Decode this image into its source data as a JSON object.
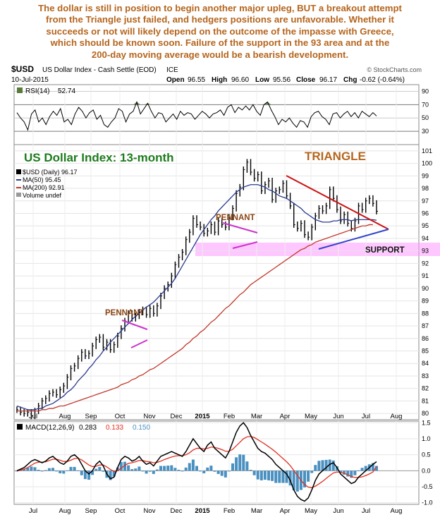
{
  "commentary": [
    "The dollar is still in position to begin another major upleg, BUT a breakout attempt",
    "from the Triangle just failed, and hedgers positions are unfavorable. Whether it",
    "succeeds or not will likely depend on the outcome of the impasse with Greece,",
    "which should be known soon. Failure of the support in the 93 area and at the",
    "200-day moving average would be a bearish development."
  ],
  "header": {
    "symbol": "$USD",
    "name": "US Dollar Index - Cash Settle (EOD)",
    "exchange": "ICE",
    "watermark": "© StockCharts.com",
    "date": "10-Jul-2015",
    "open_label": "Open",
    "open": "96.55",
    "high_label": "High",
    "high": "96.60",
    "low_label": "Low",
    "low": "95.56",
    "close_label": "Close",
    "close": "96.17",
    "chg_label": "Chg",
    "chg": "-0.62 (-0.64%)"
  },
  "rsi_panel": {
    "label": "RSI(14)",
    "value": "52.74"
  },
  "price_legend": {
    "main": "$USD (Daily) 96.17",
    "ma50": "MA(50) 95.45",
    "ma200": "MA(200) 92.91",
    "volume": "Volume undef"
  },
  "annotations": {
    "title": "US Dollar Index: 13-month",
    "triangle": "TRIANGLE",
    "pennant_1": "PENNANT",
    "pennant_2": "PENNANT",
    "support": "SUPPORT"
  },
  "macd_panel": {
    "label": "MACD(12,26,9)",
    "v1": "0.283",
    "v2": "0.133",
    "v3": "0.150"
  },
  "colors": {
    "commentary": "#b5651d",
    "title": "#1e7b1e",
    "annotation": "#8b4513",
    "price": "#000000",
    "ma50": "#2b3a8f",
    "ma200": "#c0392b",
    "triangle_upper": "#cc1111",
    "triangle_lower": "#3344cc",
    "pennant": "#cc33cc",
    "support_band": "#ff99ff",
    "macd_line": "#000000",
    "macd_signal": "#e03020",
    "histogram": "#4a90c0",
    "rsi_fill": "#5a7a3a"
  },
  "chart_data": [
    {
      "type": "line",
      "title": "",
      "x_ticks": [
        "Jul",
        "Aug",
        "Sep",
        "Oct",
        "Nov",
        "Dec",
        "2015",
        "Feb",
        "Mar",
        "Apr",
        "May",
        "Jun",
        "Jul",
        "Aug"
      ],
      "ylim": [
        10,
        100
      ],
      "y_ticks": [
        90,
        70,
        50,
        30
      ],
      "series": [
        {
          "name": "RSI(14)",
          "values": [
            58,
            50,
            44,
            32,
            56,
            62,
            44,
            50,
            40,
            52,
            60,
            54,
            64,
            44,
            48,
            40,
            56,
            66,
            60,
            50,
            58,
            62,
            48,
            54,
            40,
            36,
            44,
            50,
            64,
            60,
            44,
            56,
            60,
            74,
            56,
            64,
            72,
            60,
            50,
            58,
            56,
            44,
            50,
            56,
            48,
            60,
            54,
            58,
            56,
            48,
            54,
            60,
            56,
            50,
            56,
            58,
            62,
            54,
            66,
            70,
            58,
            66,
            62,
            68,
            62,
            70,
            60,
            54,
            70,
            74,
            62,
            52,
            40,
            48,
            44,
            50,
            42,
            36,
            46,
            44,
            36,
            52,
            58,
            60,
            52,
            48,
            40,
            56,
            58,
            50,
            56,
            60,
            52,
            58,
            50,
            60,
            56,
            52,
            58,
            53
          ]
        }
      ]
    },
    {
      "type": "line",
      "title": "US Dollar Index: 13-month",
      "x_ticks": [
        "Jul",
        "Aug",
        "Sep",
        "Oct",
        "Nov",
        "Dec",
        "2015",
        "Feb",
        "Mar",
        "Apr",
        "May",
        "Jun",
        "Jul",
        "Aug"
      ],
      "ylim": [
        79.5,
        101.5
      ],
      "y_ticks": [
        80,
        81,
        82,
        83,
        84,
        85,
        86,
        87,
        88,
        89,
        90,
        91,
        92,
        93,
        94,
        95,
        96,
        97,
        98,
        99,
        100,
        101
      ],
      "series": [
        {
          "name": "$USD (Daily)",
          "values": [
            80.3,
            80.1,
            80.0,
            80.1,
            79.8,
            80.2,
            80.6,
            81.0,
            81.2,
            81.6,
            81.7,
            81.5,
            81.9,
            82.2,
            82.9,
            83.6,
            83.8,
            84.4,
            84.9,
            84.6,
            84.8,
            85.4,
            85.9,
            86.1,
            85.3,
            85.7,
            85.1,
            85.5,
            86.2,
            86.8,
            87.4,
            88.0,
            87.6,
            87.8,
            88.1,
            88.3,
            87.9,
            88.4,
            88.0,
            88.6,
            89.4,
            90.0,
            90.3,
            91.0,
            91.9,
            92.5,
            92.9,
            93.9,
            94.5,
            95.6,
            95.1,
            94.9,
            94.4,
            94.6,
            95.1,
            94.5,
            95.4,
            95.1,
            94.9,
            95.7,
            96.4,
            97.6,
            98.1,
            99.5,
            100.1,
            99.3,
            98.8,
            99.1,
            97.8,
            98.3,
            98.6,
            97.1,
            97.8,
            97.9,
            98.4,
            97.4,
            96.6,
            95.1,
            94.8,
            95.2,
            94.3,
            94.1,
            94.9,
            95.8,
            96.4,
            96.2,
            96.6,
            97.9,
            97.2,
            96.3,
            95.4,
            95.9,
            95.2,
            94.8,
            95.4,
            96.6,
            96.3,
            97.0,
            97.2,
            96.8,
            96.17
          ]
        },
        {
          "name": "MA(50)",
          "values": [
            80.6,
            80.5,
            80.4,
            80.3,
            80.3,
            80.3,
            80.4,
            80.4,
            80.6,
            80.7,
            80.8,
            81.0,
            81.2,
            81.4,
            81.7,
            81.9,
            82.2,
            82.6,
            82.9,
            83.2,
            83.6,
            83.9,
            84.3,
            84.6,
            85.0,
            85.3,
            85.7,
            86.0,
            86.3,
            86.6,
            86.9,
            87.2,
            87.5,
            87.8,
            88.0,
            88.3,
            88.5,
            88.7,
            88.9,
            89.2,
            89.5,
            89.8,
            90.1,
            90.4,
            90.8,
            91.3,
            91.8,
            92.3,
            92.8,
            93.3,
            93.8,
            94.3,
            94.7,
            95.1,
            95.5,
            95.8,
            96.2,
            96.5,
            96.8,
            97.1,
            97.4,
            97.7,
            97.9,
            98.1,
            98.2,
            98.3,
            98.3,
            98.3,
            98.2,
            98.1,
            97.9,
            97.8,
            97.6,
            97.4,
            97.3,
            97.2,
            97.0,
            96.8,
            96.6,
            96.4,
            96.1,
            95.9,
            95.7,
            95.5,
            95.4,
            95.3,
            95.3,
            95.3,
            95.4,
            95.4,
            95.5,
            95.5,
            95.5,
            95.4,
            95.5,
            95.5,
            95.5,
            95.5,
            95.5,
            95.5,
            95.45
          ]
        },
        {
          "name": "MA(200)",
          "values": [
            80.2,
            80.2,
            80.2,
            80.2,
            80.2,
            80.2,
            80.2,
            80.3,
            80.3,
            80.4,
            80.4,
            80.5,
            80.6,
            80.6,
            80.7,
            80.8,
            80.9,
            81.0,
            81.1,
            81.2,
            81.3,
            81.4,
            81.5,
            81.6,
            81.7,
            81.8,
            81.9,
            82.0,
            82.1,
            82.3,
            82.4,
            82.5,
            82.7,
            82.8,
            83.0,
            83.1,
            83.3,
            83.5,
            83.6,
            83.8,
            84.0,
            84.2,
            84.4,
            84.6,
            84.8,
            85.0,
            85.2,
            85.5,
            85.7,
            86.0,
            86.2,
            86.5,
            86.7,
            87.0,
            87.3,
            87.5,
            87.8,
            88.1,
            88.4,
            88.6,
            88.9,
            89.2,
            89.5,
            89.7,
            90.0,
            90.3,
            90.5,
            90.7,
            90.9,
            91.1,
            91.3,
            91.5,
            91.7,
            91.9,
            92.1,
            92.3,
            92.5,
            92.7,
            92.9,
            93.1,
            93.2,
            93.4,
            93.5,
            93.7,
            93.8,
            93.9,
            94.0,
            94.1,
            94.2,
            94.3,
            94.4,
            94.5,
            94.6,
            94.7,
            94.8,
            94.9,
            95.0,
            95.0,
            95.1,
            95.1,
            92.91
          ]
        }
      ]
    },
    {
      "type": "line",
      "title": "",
      "x_ticks": [
        "Jul",
        "Aug",
        "Sep",
        "Oct",
        "Nov",
        "Dec",
        "2015",
        "Feb",
        "Mar",
        "Apr",
        "May",
        "Jun",
        "Jul",
        "Aug"
      ],
      "ylim": [
        -1.05,
        1.55
      ],
      "y_ticks": [
        1.5,
        1.0,
        0.5,
        0.0,
        -0.5,
        -1.0
      ],
      "series": [
        {
          "name": "MACD",
          "values": [
            0.0,
            0.05,
            0.1,
            0.2,
            0.3,
            0.35,
            0.3,
            0.25,
            0.3,
            0.4,
            0.45,
            0.35,
            0.25,
            0.2,
            0.3,
            0.45,
            0.5,
            0.4,
            0.2,
            0.0,
            -0.1,
            0.0,
            0.2,
            0.3,
            0.15,
            -0.1,
            -0.25,
            -0.2,
            0.1,
            0.35,
            0.45,
            0.4,
            0.3,
            0.35,
            0.45,
            0.3,
            0.2,
            0.25,
            0.15,
            0.3,
            0.45,
            0.5,
            0.55,
            0.6,
            0.55,
            0.5,
            0.45,
            0.6,
            0.8,
            1.0,
            0.85,
            0.7,
            0.6,
            0.8,
            0.9,
            0.7,
            0.6,
            0.5,
            0.4,
            0.6,
            0.9,
            1.2,
            1.4,
            1.5,
            1.35,
            1.1,
            0.9,
            0.7,
            0.6,
            0.55,
            0.45,
            0.35,
            0.2,
            0.1,
            0.0,
            -0.1,
            -0.3,
            -0.6,
            -0.8,
            -0.9,
            -0.95,
            -0.85,
            -0.6,
            -0.3,
            -0.1,
            0.0,
            0.1,
            0.2,
            0.25,
            0.1,
            -0.1,
            -0.2,
            -0.3,
            -0.4,
            -0.35,
            -0.2,
            -0.1,
            0.0,
            0.1,
            0.2,
            0.283
          ]
        },
        {
          "name": "Signal",
          "values": [
            0.0,
            0.02,
            0.05,
            0.1,
            0.17,
            0.24,
            0.27,
            0.27,
            0.28,
            0.32,
            0.36,
            0.36,
            0.33,
            0.29,
            0.29,
            0.33,
            0.38,
            0.39,
            0.34,
            0.26,
            0.18,
            0.13,
            0.14,
            0.18,
            0.18,
            0.12,
            0.04,
            -0.02,
            0.0,
            0.08,
            0.17,
            0.23,
            0.25,
            0.28,
            0.32,
            0.32,
            0.29,
            0.28,
            0.25,
            0.26,
            0.3,
            0.35,
            0.39,
            0.43,
            0.46,
            0.47,
            0.47,
            0.5,
            0.56,
            0.65,
            0.7,
            0.7,
            0.68,
            0.7,
            0.74,
            0.73,
            0.7,
            0.66,
            0.61,
            0.61,
            0.67,
            0.78,
            0.89,
            1.0,
            1.06,
            1.07,
            1.04,
            0.97,
            0.9,
            0.83,
            0.75,
            0.67,
            0.58,
            0.48,
            0.38,
            0.28,
            0.16,
            0.01,
            -0.15,
            -0.3,
            -0.43,
            -0.51,
            -0.53,
            -0.48,
            -0.41,
            -0.33,
            -0.24,
            -0.15,
            -0.07,
            -0.04,
            -0.05,
            -0.08,
            -0.12,
            -0.18,
            -0.21,
            -0.21,
            -0.19,
            -0.15,
            -0.1,
            -0.04,
            0.133
          ]
        }
      ]
    }
  ]
}
